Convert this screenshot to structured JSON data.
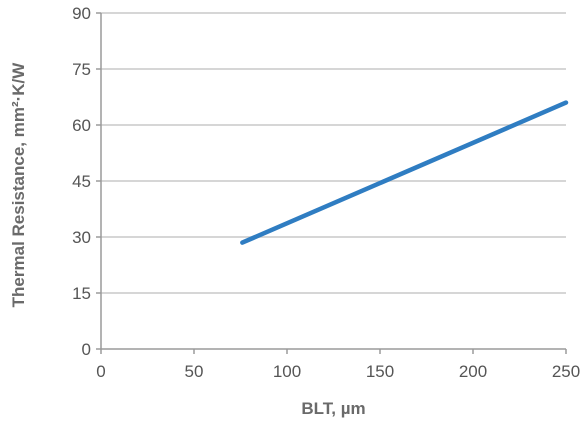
{
  "chart_data": {
    "type": "line",
    "xlabel": "BLT, µm",
    "ylabel": "Thermal Resistance, mm²·K/W",
    "xlim": [
      0,
      250
    ],
    "ylim": [
      0,
      90
    ],
    "x_ticks": [
      "0",
      "50",
      "100",
      "150",
      "200",
      "250"
    ],
    "y_ticks": [
      "0",
      "15",
      "30",
      "45",
      "60",
      "75",
      "90"
    ],
    "grid": "horizontal",
    "series": [
      {
        "x": [
          76,
          250
        ],
        "y": [
          28.5,
          66
        ],
        "color": "#2f7dc2"
      }
    ],
    "colors": {
      "line": "#2f7dc2",
      "grid": "#c8c8c8",
      "axis": "#9a9a9a",
      "text": "#555555"
    }
  }
}
